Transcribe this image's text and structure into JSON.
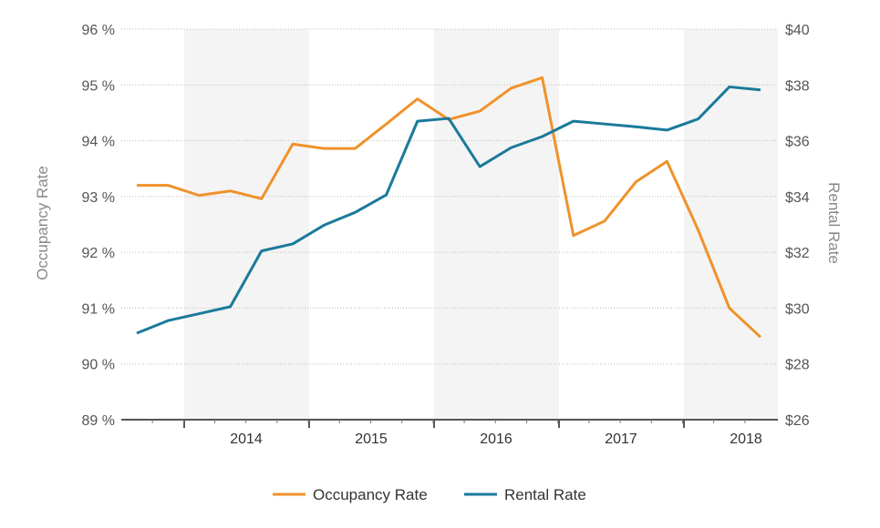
{
  "chart_data": {
    "type": "line",
    "x_tick_labels": [
      "2014",
      "2015",
      "2016",
      "2017",
      "2018"
    ],
    "left_axis": {
      "label": "Occupancy Rate",
      "ticks": [
        "96 %",
        "95 %",
        "94 %",
        "93 %",
        "92 %",
        "91 %",
        "90 %",
        "89 %"
      ],
      "range": [
        89,
        96
      ]
    },
    "right_axis": {
      "label": "Rental Rate",
      "ticks": [
        "$40",
        "$38",
        "$36",
        "$34",
        "$32",
        "$30",
        "$28",
        "$26"
      ],
      "range": [
        26,
        40
      ]
    },
    "x_quarter_range": [
      0,
      21
    ],
    "shaded_years": [
      "2014",
      "2016",
      "2018"
    ],
    "grid": "horizontal dotted",
    "legend_position": "bottom",
    "series": [
      {
        "name": "Occupancy Rate",
        "axis": "left",
        "color": "#f0922b",
        "values": [
          93.2,
          93.2,
          93.02,
          93.1,
          92.96,
          93.94,
          93.86,
          93.86,
          94.3,
          94.75,
          94.38,
          94.53,
          94.94,
          95.13,
          92.3,
          92.56,
          93.26,
          93.63,
          92.4,
          91.0,
          90.48
        ]
      },
      {
        "name": "Rental Rate",
        "axis": "right",
        "color": "#1a7a9a",
        "values": [
          29.1,
          29.55,
          29.8,
          30.05,
          32.05,
          32.3,
          32.97,
          33.43,
          34.06,
          36.7,
          36.8,
          35.07,
          35.75,
          36.15,
          36.7,
          36.6,
          36.5,
          36.38,
          36.78,
          37.93,
          37.82
        ]
      }
    ]
  }
}
